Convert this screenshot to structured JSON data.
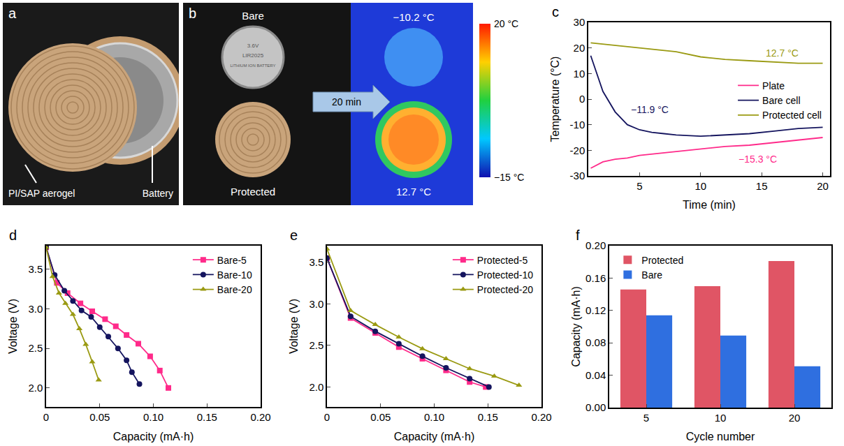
{
  "photo_panels": [
    {
      "panel_label": "a",
      "labels": [
        "PI/SAP aerogel",
        "Battery"
      ]
    },
    {
      "panel_label": "b",
      "top_label": "Bare",
      "bottom_label": "Protected",
      "arrow_text": "20 min",
      "cell_text": [
        "3.6V",
        "LIR2025",
        "LITHIUM ION BATTERY"
      ],
      "bare_temperature": "−10.2 °C",
      "protected_temperature": "12.7 °C",
      "colorbar": {
        "range": [
          -15,
          20
        ],
        "ticks": [
          {
            "value": 20,
            "label": "20 °C"
          },
          {
            "value": -15,
            "label": "−15 °C"
          }
        ]
      }
    }
  ],
  "chart_data": [
    {
      "type": "line",
      "panel_label": "c",
      "xlabel": "Time (min)",
      "ylabel": "Temperature (°C)",
      "x": [
        1,
        2,
        3,
        4,
        5,
        6,
        7,
        8,
        10,
        12,
        14,
        16,
        18,
        20
      ],
      "series": [
        {
          "name": "Plate",
          "color": "#ff2a8a",
          "line_style": "solid",
          "values": [
            -27,
            -24.5,
            -23.5,
            -23,
            -22,
            -21.5,
            -21,
            -20.5,
            -19.5,
            -18.5,
            -18,
            -17,
            -16,
            -15
          ]
        },
        {
          "name": "Bare cell",
          "color": "#14145e",
          "line_style": "solid",
          "values": [
            17,
            3,
            -5,
            -10,
            -12,
            -13,
            -13.5,
            -14,
            -14.5,
            -14,
            -13.5,
            -12.5,
            -11.5,
            -11
          ]
        },
        {
          "name": "Protected cell",
          "color": "#9a9a12",
          "line_style": "solid",
          "values": [
            22,
            21.5,
            21,
            20.5,
            20,
            19.5,
            19,
            18.5,
            16.5,
            15.5,
            15,
            14.5,
            14,
            14
          ]
        }
      ],
      "annotations": [
        {
          "text": "12.7 °C",
          "x": 15.2,
          "y": 18,
          "color": "#9a9a12"
        },
        {
          "text": "−11.9 °C",
          "x": 4.2,
          "y": -4,
          "color": "#14145e"
        },
        {
          "text": "−15.3 °C",
          "x": 13,
          "y": -23.5,
          "color": "#ff2a8a"
        }
      ],
      "xlim": [
        0.8,
        20.6
      ],
      "xticks": [
        5,
        10,
        15,
        20
      ],
      "ylim": [
        -30,
        30
      ],
      "yticks": [
        -30,
        -20,
        -10,
        0,
        10,
        20,
        30
      ],
      "legend": "right",
      "grid": false
    },
    {
      "type": "line",
      "panel_label": "d",
      "xlabel": "Capacity (mA·h)",
      "ylabel": "Voltage (V)",
      "series": [
        {
          "name": "Bare-5",
          "color": "#ff2a8a",
          "marker": "square",
          "line_style": "solid",
          "x": [
            0,
            0.01,
            0.02,
            0.032,
            0.043,
            0.055,
            0.065,
            0.075,
            0.086,
            0.097,
            0.106,
            0.114
          ],
          "values": [
            3.78,
            3.33,
            3.2,
            3.07,
            2.97,
            2.87,
            2.78,
            2.67,
            2.56,
            2.4,
            2.22,
            2.0
          ]
        },
        {
          "name": "Bare-10",
          "color": "#14145e",
          "marker": "circle",
          "line_style": "solid",
          "x": [
            0,
            0.008,
            0.017,
            0.025,
            0.033,
            0.042,
            0.05,
            0.058,
            0.067,
            0.075,
            0.08,
            0.087
          ],
          "values": [
            3.78,
            3.43,
            3.23,
            3.1,
            2.98,
            2.9,
            2.77,
            2.65,
            2.5,
            2.35,
            2.2,
            2.05
          ]
        },
        {
          "name": "Bare-20",
          "color": "#9a9a12",
          "marker": "triangle",
          "line_style": "solid",
          "x": [
            0,
            0.006,
            0.012,
            0.018,
            0.025,
            0.031,
            0.037,
            0.043,
            0.049
          ],
          "values": [
            3.78,
            3.41,
            3.2,
            3.07,
            2.93,
            2.75,
            2.55,
            2.33,
            2.1
          ]
        }
      ],
      "xlim": [
        0,
        0.2
      ],
      "xticks": [
        0,
        0.05,
        {
          "value": 0.1,
          "label": "0.10"
        },
        0.15,
        {
          "value": 0.2,
          "label": "0.20"
        }
      ],
      "ylim": [
        1.76,
        3.8
      ],
      "yticks": [
        {
          "value": 2,
          "label": "2.0"
        },
        2.5,
        {
          "value": 3,
          "label": "3.0"
        },
        3.5
      ],
      "legend": "upper right",
      "grid": false
    },
    {
      "type": "line",
      "panel_label": "e",
      "xlabel": "Capacity (mA·h)",
      "ylabel": "Voltage (V)",
      "series": [
        {
          "name": "Protected-5",
          "color": "#ff2a8a",
          "marker": "square",
          "line_style": "solid",
          "x": [
            0,
            0.022,
            0.045,
            0.067,
            0.089,
            0.111,
            0.133,
            0.148
          ],
          "values": [
            3.55,
            2.83,
            2.65,
            2.48,
            2.34,
            2.2,
            2.06,
            2.0
          ]
        },
        {
          "name": "Protected-10",
          "color": "#14145e",
          "marker": "circle",
          "line_style": "solid",
          "x": [
            0,
            0.022,
            0.045,
            0.067,
            0.089,
            0.111,
            0.133,
            0.151
          ],
          "values": [
            3.55,
            2.85,
            2.67,
            2.52,
            2.37,
            2.23,
            2.1,
            2.0
          ]
        },
        {
          "name": "Protected-20",
          "color": "#9a9a12",
          "marker": "triangle",
          "line_style": "solid",
          "x": [
            0,
            0.022,
            0.045,
            0.067,
            0.089,
            0.111,
            0.133,
            0.156,
            0.179
          ],
          "values": [
            3.66,
            2.92,
            2.75,
            2.6,
            2.46,
            2.34,
            2.22,
            2.13,
            2.02
          ]
        }
      ],
      "xlim": [
        0,
        0.2
      ],
      "xticks": [
        0,
        0.05,
        {
          "value": 0.1,
          "label": "0.10"
        },
        0.15,
        {
          "value": 0.2,
          "label": "0.20"
        }
      ],
      "ylim": [
        1.76,
        3.7
      ],
      "yticks": [
        {
          "value": 2,
          "label": "2.0"
        },
        2.5,
        {
          "value": 3,
          "label": "3.0"
        },
        3.5
      ],
      "legend": "upper right",
      "grid": false
    },
    {
      "type": "bar",
      "panel_label": "f",
      "xlabel": "Cycle number",
      "ylabel": "Capacity (mA·h)",
      "categories": [
        "5",
        "10",
        "20"
      ],
      "series": [
        {
          "name": "Protected",
          "color": "#e05565",
          "values": [
            0.146,
            0.15,
            0.181
          ]
        },
        {
          "name": "Bare",
          "color": "#2f6fe0",
          "values": [
            0.114,
            0.089,
            0.051
          ]
        }
      ],
      "ylim": [
        0,
        0.2
      ],
      "yticks": [
        {
          "value": 0,
          "label": "0.00"
        },
        0.04,
        0.08,
        0.12,
        0.16,
        {
          "value": 0.2,
          "label": "0.20"
        }
      ],
      "legend": "upper left",
      "grid": false
    }
  ]
}
